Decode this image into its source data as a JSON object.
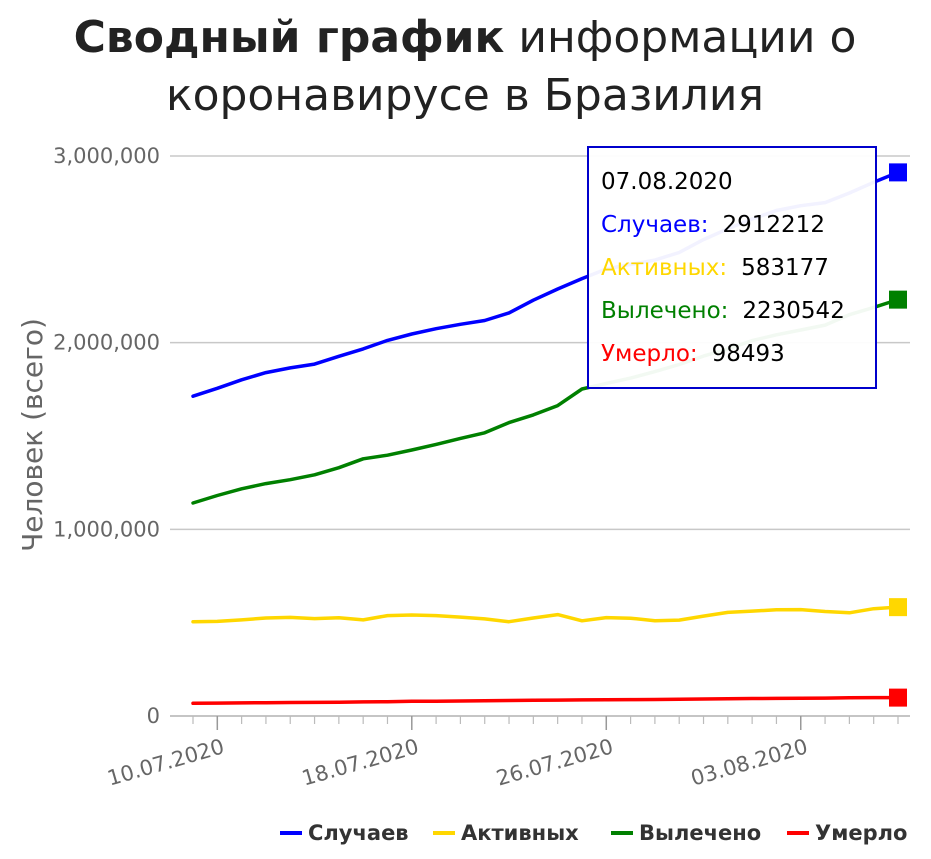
{
  "title": {
    "bold": "Сводный график",
    "rest_line1": "информации о",
    "line2": "коронавирусе в Бразилия"
  },
  "colors": {
    "cases": "#0000ff",
    "active": "#ffd700",
    "recovered": "#008000",
    "deaths": "#ff0000",
    "grid": "#c8c8c8",
    "tooltip_border": "#0000cc"
  },
  "tooltip": {
    "date": "07.08.2020",
    "items": [
      {
        "label": "Случаев:",
        "value": "2912212",
        "color": "#0000ff"
      },
      {
        "label": "Активных:",
        "value": "583177",
        "color": "#ffd700"
      },
      {
        "label": "Вылечено:",
        "value": "2230542",
        "color": "#008000"
      },
      {
        "label": "Умерло:",
        "value": "98493",
        "color": "#ff0000"
      }
    ]
  },
  "chart_data": {
    "type": "line",
    "title": "Сводный график информации о коронавирусе в Бразилия",
    "xlabel": "",
    "ylabel": "Человек (всего)",
    "ylim": [
      0,
      3000000
    ],
    "yticks": [
      0,
      1000000,
      2000000,
      3000000
    ],
    "ytick_labels": [
      "0",
      "1,000,000",
      "2,000,000",
      "3,000,000"
    ],
    "xtick_labels": [
      "10.07.2020",
      "18.07.2020",
      "26.07.2020",
      "03.08.2020"
    ],
    "xtick_dates": [
      "2020-07-10",
      "2020-07-18",
      "2020-07-26",
      "2020-08-03"
    ],
    "x": [
      "2020-07-09",
      "2020-07-10",
      "2020-07-11",
      "2020-07-12",
      "2020-07-13",
      "2020-07-14",
      "2020-07-15",
      "2020-07-16",
      "2020-07-17",
      "2020-07-18",
      "2020-07-19",
      "2020-07-20",
      "2020-07-21",
      "2020-07-22",
      "2020-07-23",
      "2020-07-24",
      "2020-07-25",
      "2020-07-26",
      "2020-07-27",
      "2020-07-28",
      "2020-07-29",
      "2020-07-30",
      "2020-07-31",
      "2020-08-01",
      "2020-08-02",
      "2020-08-03",
      "2020-08-04",
      "2020-08-05",
      "2020-08-06",
      "2020-08-07"
    ],
    "grid": true,
    "legend_position": "bottom-right",
    "series": [
      {
        "name": "Случаев",
        "color": "#0000ff",
        "values": [
          1713160,
          1755779,
          1800827,
          1839850,
          1864681,
          1884967,
          1926824,
          1966748,
          2012151,
          2046328,
          2074860,
          2098389,
          2118646,
          2159654,
          2227514,
          2287475,
          2343366,
          2394513,
          2419091,
          2442375,
          2483191,
          2552265,
          2610102,
          2662485,
          2707877,
          2733677,
          2750318,
          2801921,
          2859073,
          2912212
        ]
      },
      {
        "name": "Активных",
        "color": "#ffd700",
        "values": [
          505000,
          507000,
          515000,
          525000,
          528000,
          522000,
          526000,
          515000,
          538000,
          541000,
          538000,
          530000,
          520000,
          505000,
          525000,
          543000,
          510000,
          527000,
          524000,
          510000,
          514000,
          535000,
          555000,
          562000,
          569000,
          570000,
          560000,
          553000,
          575000,
          583177
        ]
      },
      {
        "name": "Вылечено",
        "color": "#008000",
        "values": [
          1141000,
          1181000,
          1217000,
          1245000,
          1266000,
          1292000,
          1330000,
          1378000,
          1397000,
          1425000,
          1455000,
          1487000,
          1517000,
          1572000,
          1613000,
          1663000,
          1752000,
          1782000,
          1810000,
          1845000,
          1883000,
          1928000,
          1966000,
          2011000,
          2042000,
          2068000,
          2094000,
          2150000,
          2189000,
          2230542
        ]
      },
      {
        "name": "Умерло",
        "color": "#ff0000",
        "values": [
          67964,
          69184,
          70398,
          71469,
          72100,
          72833,
          74133,
          75366,
          76688,
          78772,
          79488,
          80120,
          81487,
          82771,
          84082,
          85238,
          86449,
          87004,
          87618,
          88539,
          90134,
          91263,
          92475,
          93563,
          94104,
          94665,
          95819,
          97256,
          98493,
          98493
        ]
      }
    ]
  }
}
